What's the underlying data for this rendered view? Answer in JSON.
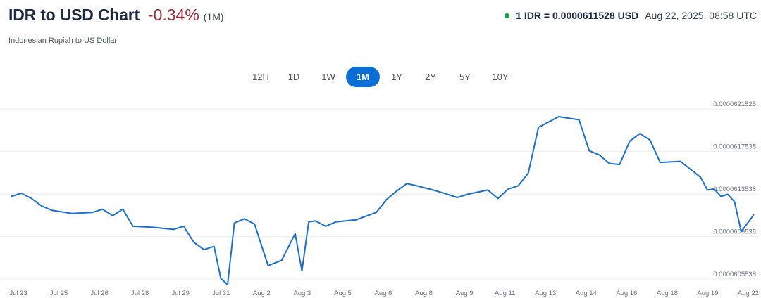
{
  "header": {
    "title": "IDR to USD Chart",
    "change": "-0.34%",
    "period": "(1M)",
    "subtitle": "Indonesian Rupiah to US Dollar",
    "rate": "1 IDR = 0.0000611528 USD",
    "timestamp": "Aug 22, 2025, 08:58 UTC",
    "status_color": "#16a34a"
  },
  "tabs": [
    {
      "label": "12H",
      "active": false
    },
    {
      "label": "1D",
      "active": false
    },
    {
      "label": "1W",
      "active": false
    },
    {
      "label": "1M",
      "active": true
    },
    {
      "label": "1Y",
      "active": false
    },
    {
      "label": "2Y",
      "active": false
    },
    {
      "label": "5Y",
      "active": false
    },
    {
      "label": "10Y",
      "active": false
    }
  ],
  "chart_data": {
    "type": "line",
    "title": "",
    "xlabel": "",
    "ylabel": "",
    "line_color": "#1a6fd1",
    "grid": true,
    "ylim": [
      6.05538e-05,
      6.21525e-05
    ],
    "y_ticks": [
      "0.0000621525",
      "0.0000617538",
      "0.0000613538",
      "0.0000609538",
      "0.0000605538"
    ],
    "x_ticks": [
      "Jul 23",
      "Jul 25",
      "Jul 26",
      "Jul 28",
      "Jul 29",
      "Jul 31",
      "Aug 2",
      "Aug 3",
      "Aug 5",
      "Aug 6",
      "Aug 8",
      "Aug 9",
      "Aug 11",
      "Aug 13",
      "Aug 14",
      "Aug 16",
      "Aug 18",
      "Aug 19",
      "Aug 22"
    ],
    "series": [
      {
        "x": [
          "Jul 23",
          "Jul 23",
          "Jul 24",
          "Jul 24",
          "Jul 25",
          "Jul 25",
          "Jul 26",
          "Jul 26",
          "Jul 27",
          "Jul 27",
          "Jul 28",
          "Jul 28",
          "Jul 29",
          "Jul 29",
          "Jul 30",
          "Jul 30",
          "Jul 31",
          "Jul 31",
          "Jul 31",
          "Aug 1",
          "Aug 1",
          "Aug 2",
          "Aug 2",
          "Aug 2",
          "Aug 3",
          "Aug 3",
          "Aug 3",
          "Aug 4",
          "Aug 4",
          "Aug 5",
          "Aug 5",
          "Aug 6",
          "Aug 6",
          "Aug 7",
          "Aug 7",
          "Aug 8",
          "Aug 8",
          "Aug 9",
          "Aug 9",
          "Aug 10",
          "Aug 10",
          "Aug 11",
          "Aug 11",
          "Aug 12",
          "Aug 12",
          "Aug 13",
          "Aug 13",
          "Aug 14",
          "Aug 14",
          "Aug 15",
          "Aug 15",
          "Aug 16",
          "Aug 16",
          "Aug 17",
          "Aug 17",
          "Aug 18",
          "Aug 18",
          "Aug 19",
          "Aug 19",
          "Aug 20",
          "Aug 20",
          "Aug 21",
          "Aug 21",
          "Aug 22",
          "Aug 22"
        ],
        "values": [
          6.133e-05,
          6.136e-05,
          6.131e-05,
          6.124e-05,
          6.12e-05,
          6.117e-05,
          6.118e-05,
          6.121e-05,
          6.115e-05,
          6.121e-05,
          6.105e-05,
          6.104e-05,
          6.102e-05,
          6.105e-05,
          6.09e-05,
          6.083e-05,
          6.086e-05,
          6.056e-05,
          6.05e-05,
          6.108e-05,
          6.112e-05,
          6.107e-05,
          6.068e-05,
          6.073e-05,
          6.098e-05,
          6.063e-05,
          6.109e-05,
          6.11e-05,
          6.105e-05,
          6.109e-05,
          6.111e-05,
          6.118e-05,
          6.13e-05,
          6.138e-05,
          6.145e-05,
          6.143e-05,
          6.138e-05,
          6.132e-05,
          6.135e-05,
          6.137e-05,
          6.139e-05,
          6.131e-05,
          6.14e-05,
          6.143e-05,
          6.155e-05,
          6.198e-05,
          6.208e-05,
          6.205e-05,
          6.176e-05,
          6.172e-05,
          6.164e-05,
          6.163e-05,
          6.185e-05,
          6.192e-05,
          6.186e-05,
          6.165e-05,
          6.166e-05,
          6.151e-05,
          6.139e-05,
          6.14e-05,
          6.133e-05,
          6.135e-05,
          6.128e-05,
          6.1e-05,
          6.116e-05
        ]
      }
    ]
  }
}
